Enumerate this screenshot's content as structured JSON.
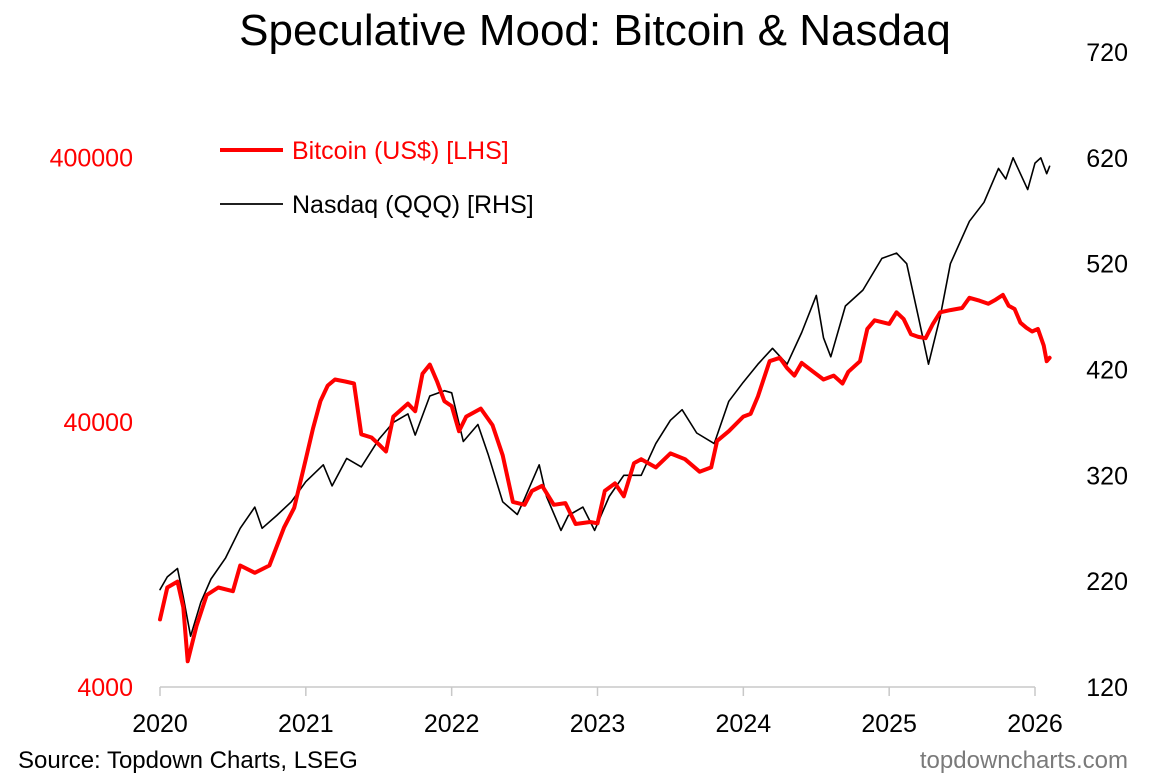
{
  "chart_data": {
    "type": "line",
    "title": "Speculative Mood: Bitcoin & Nasdaq",
    "x_ticks": [
      "2020",
      "2021",
      "2022",
      "2023",
      "2024",
      "2025",
      "2026"
    ],
    "left_axis": {
      "scale": "log",
      "range": [
        4000,
        1000000
      ],
      "ticks": [
        "4000",
        "40000",
        "400000"
      ],
      "color": "#ff0000"
    },
    "right_axis": {
      "scale": "linear",
      "range": [
        120,
        720
      ],
      "ticks": [
        "120",
        "220",
        "320",
        "420",
        "520",
        "620",
        "720"
      ],
      "color": "#000000"
    },
    "series": [
      {
        "name": "Bitcoin (US$) [LHS]",
        "axis": "left",
        "color": "#ff0000",
        "points": [
          [
            2020.0,
            7200
          ],
          [
            2020.05,
            9500
          ],
          [
            2020.12,
            10000
          ],
          [
            2020.16,
            8000
          ],
          [
            2020.19,
            5000
          ],
          [
            2020.25,
            6800
          ],
          [
            2020.32,
            8900
          ],
          [
            2020.4,
            9500
          ],
          [
            2020.5,
            9200
          ],
          [
            2020.55,
            11500
          ],
          [
            2020.65,
            10800
          ],
          [
            2020.75,
            11500
          ],
          [
            2020.85,
            16000
          ],
          [
            2020.92,
            19000
          ],
          [
            2021.0,
            29000
          ],
          [
            2021.05,
            38000
          ],
          [
            2021.1,
            48000
          ],
          [
            2021.15,
            55000
          ],
          [
            2021.2,
            58000
          ],
          [
            2021.27,
            57000
          ],
          [
            2021.33,
            56000
          ],
          [
            2021.38,
            36000
          ],
          [
            2021.45,
            35000
          ],
          [
            2021.5,
            33000
          ],
          [
            2021.55,
            31000
          ],
          [
            2021.6,
            42000
          ],
          [
            2021.7,
            47000
          ],
          [
            2021.75,
            44000
          ],
          [
            2021.8,
            61000
          ],
          [
            2021.85,
            66000
          ],
          [
            2021.9,
            57000
          ],
          [
            2021.95,
            48000
          ],
          [
            2022.0,
            46000
          ],
          [
            2022.05,
            37000
          ],
          [
            2022.1,
            42000
          ],
          [
            2022.2,
            45000
          ],
          [
            2022.28,
            39000
          ],
          [
            2022.35,
            30000
          ],
          [
            2022.42,
            20000
          ],
          [
            2022.5,
            19500
          ],
          [
            2022.55,
            22000
          ],
          [
            2022.62,
            23000
          ],
          [
            2022.7,
            19500
          ],
          [
            2022.78,
            19800
          ],
          [
            2022.85,
            16500
          ],
          [
            2022.95,
            16800
          ],
          [
            2023.0,
            16600
          ],
          [
            2023.05,
            22000
          ],
          [
            2023.12,
            23500
          ],
          [
            2023.18,
            21000
          ],
          [
            2023.25,
            28000
          ],
          [
            2023.3,
            29000
          ],
          [
            2023.4,
            27000
          ],
          [
            2023.5,
            30500
          ],
          [
            2023.6,
            29000
          ],
          [
            2023.7,
            26000
          ],
          [
            2023.78,
            27000
          ],
          [
            2023.82,
            34000
          ],
          [
            2023.9,
            37000
          ],
          [
            2024.0,
            42000
          ],
          [
            2024.05,
            43000
          ],
          [
            2024.1,
            50000
          ],
          [
            2024.18,
            68000
          ],
          [
            2024.25,
            70000
          ],
          [
            2024.3,
            64000
          ],
          [
            2024.35,
            60000
          ],
          [
            2024.4,
            67000
          ],
          [
            2024.48,
            62000
          ],
          [
            2024.55,
            58000
          ],
          [
            2024.62,
            60000
          ],
          [
            2024.68,
            56000
          ],
          [
            2024.72,
            62000
          ],
          [
            2024.8,
            68000
          ],
          [
            2024.85,
            90000
          ],
          [
            2024.9,
            97000
          ],
          [
            2025.0,
            94000
          ],
          [
            2025.05,
            104000
          ],
          [
            2025.1,
            98000
          ],
          [
            2025.15,
            86000
          ],
          [
            2025.2,
            84000
          ],
          [
            2025.25,
            83000
          ],
          [
            2025.3,
            94000
          ],
          [
            2025.35,
            104000
          ],
          [
            2025.42,
            106000
          ],
          [
            2025.5,
            108000
          ],
          [
            2025.55,
            118000
          ],
          [
            2025.62,
            115000
          ],
          [
            2025.68,
            112000
          ],
          [
            2025.73,
            116000
          ],
          [
            2025.78,
            121000
          ],
          [
            2025.82,
            110000
          ],
          [
            2025.86,
            107000
          ],
          [
            2025.9,
            95000
          ],
          [
            2025.94,
            91000
          ],
          [
            2025.98,
            88000
          ],
          [
            2026.02,
            90000
          ],
          [
            2026.06,
            78000
          ],
          [
            2026.08,
            68000
          ],
          [
            2026.1,
            70000
          ]
        ]
      },
      {
        "name": "Nasdaq (QQQ) [RHS]",
        "axis": "right",
        "color": "#000000",
        "points": [
          [
            2020.0,
            212
          ],
          [
            2020.05,
            224
          ],
          [
            2020.12,
            232
          ],
          [
            2020.16,
            205
          ],
          [
            2020.21,
            168
          ],
          [
            2020.28,
            200
          ],
          [
            2020.35,
            222
          ],
          [
            2020.45,
            242
          ],
          [
            2020.55,
            270
          ],
          [
            2020.65,
            290
          ],
          [
            2020.7,
            270
          ],
          [
            2020.8,
            282
          ],
          [
            2020.9,
            295
          ],
          [
            2021.0,
            314
          ],
          [
            2021.12,
            330
          ],
          [
            2021.18,
            310
          ],
          [
            2021.28,
            336
          ],
          [
            2021.38,
            328
          ],
          [
            2021.5,
            354
          ],
          [
            2021.6,
            370
          ],
          [
            2021.7,
            378
          ],
          [
            2021.75,
            358
          ],
          [
            2021.85,
            395
          ],
          [
            2021.95,
            400
          ],
          [
            2022.0,
            398
          ],
          [
            2022.08,
            352
          ],
          [
            2022.18,
            368
          ],
          [
            2022.25,
            340
          ],
          [
            2022.35,
            295
          ],
          [
            2022.45,
            283
          ],
          [
            2022.5,
            298
          ],
          [
            2022.6,
            330
          ],
          [
            2022.65,
            300
          ],
          [
            2022.75,
            268
          ],
          [
            2022.8,
            282
          ],
          [
            2022.9,
            290
          ],
          [
            2022.98,
            268
          ],
          [
            2023.08,
            300
          ],
          [
            2023.18,
            320
          ],
          [
            2023.3,
            320
          ],
          [
            2023.4,
            350
          ],
          [
            2023.5,
            372
          ],
          [
            2023.58,
            382
          ],
          [
            2023.68,
            360
          ],
          [
            2023.8,
            350
          ],
          [
            2023.9,
            390
          ],
          [
            2024.0,
            408
          ],
          [
            2024.1,
            425
          ],
          [
            2024.2,
            440
          ],
          [
            2024.3,
            425
          ],
          [
            2024.4,
            455
          ],
          [
            2024.5,
            490
          ],
          [
            2024.55,
            450
          ],
          [
            2024.6,
            432
          ],
          [
            2024.7,
            480
          ],
          [
            2024.82,
            495
          ],
          [
            2024.95,
            525
          ],
          [
            2025.05,
            530
          ],
          [
            2025.12,
            520
          ],
          [
            2025.2,
            470
          ],
          [
            2025.27,
            425
          ],
          [
            2025.35,
            470
          ],
          [
            2025.42,
            520
          ],
          [
            2025.55,
            560
          ],
          [
            2025.65,
            578
          ],
          [
            2025.75,
            610
          ],
          [
            2025.8,
            600
          ],
          [
            2025.85,
            620
          ],
          [
            2025.9,
            605
          ],
          [
            2025.95,
            590
          ],
          [
            2026.0,
            615
          ],
          [
            2026.04,
            620
          ],
          [
            2026.08,
            605
          ],
          [
            2026.1,
            612
          ]
        ]
      }
    ],
    "legend": {
      "position": "top-left",
      "items": [
        {
          "label": "Bitcoin (US$) [LHS]",
          "color": "#ff0000"
        },
        {
          "label": "Nasdaq (QQQ) [RHS]",
          "color": "#000000"
        }
      ]
    },
    "grid": false
  },
  "footer": {
    "source": "Source: Topdown Charts, LSEG",
    "brand": "topdowncharts.com"
  }
}
